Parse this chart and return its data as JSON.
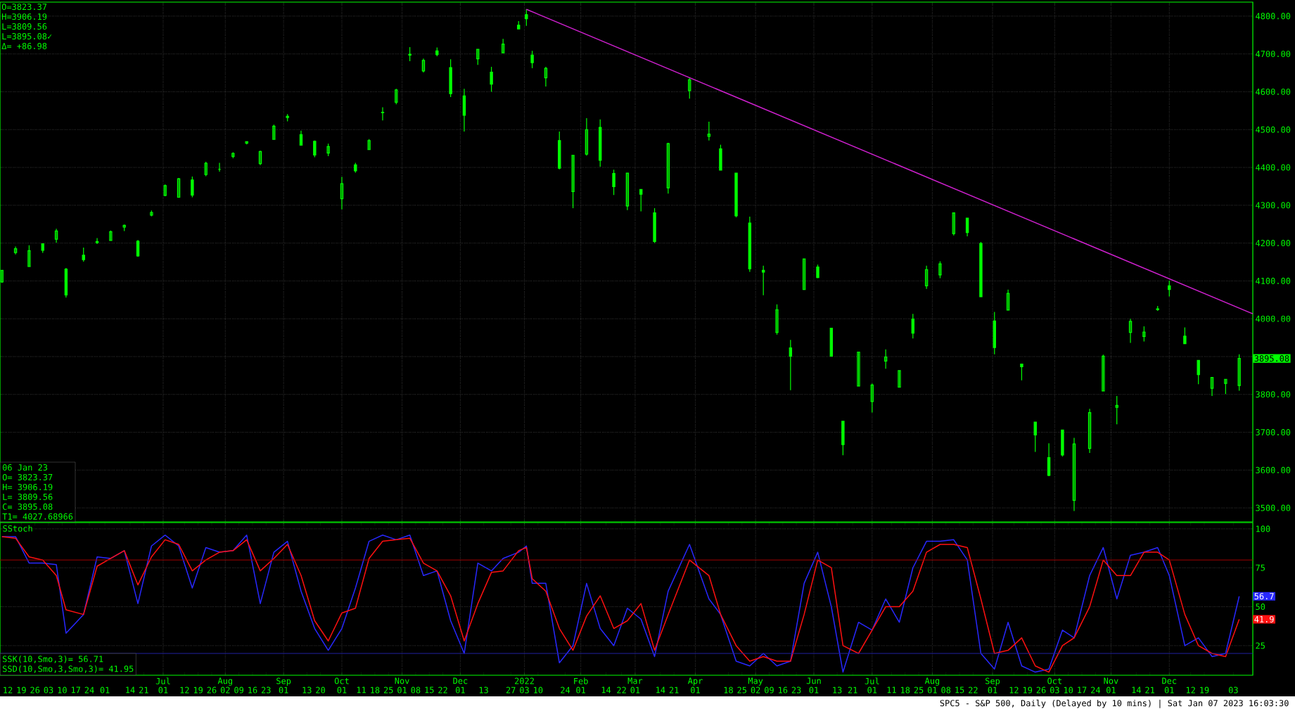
{
  "chart_data": [
    {
      "type": "candlestick",
      "color": "#00ff00",
      "grid": true,
      "tick_labels": "y",
      "xlim": [
        "2021-04-08",
        "2023-01-13"
      ],
      "ylim": [
        3463,
        4837
      ],
      "xticks": [
        {
          "value": "2021-07-01",
          "label": null
        },
        {
          "value": "2021-08-02",
          "label": null
        },
        {
          "value": "2021-09-01",
          "label": null
        },
        {
          "value": "2021-10-01",
          "label": null
        },
        {
          "value": "2021-11-01",
          "label": null
        },
        {
          "value": "2021-12-01",
          "label": null
        },
        {
          "value": "2022-01-03",
          "label": null
        },
        {
          "value": "2022-02-01",
          "label": null
        },
        {
          "value": "2022-03-01",
          "label": null
        },
        {
          "value": "2022-04-01",
          "label": null
        },
        {
          "value": "2022-05-02",
          "label": null
        },
        {
          "value": "2022-06-01",
          "label": null
        },
        {
          "value": "2022-07-01",
          "label": null
        },
        {
          "value": "2022-08-01",
          "label": null
        },
        {
          "value": "2022-09-01",
          "label": null
        },
        {
          "value": "2022-10-03",
          "label": null
        },
        {
          "value": "2022-11-01",
          "label": null
        },
        {
          "value": "2022-12-01",
          "label": null
        }
      ],
      "yticks": [
        {
          "value": 3500,
          "label": "3500.00"
        },
        {
          "value": 3600,
          "label": "3600.00"
        },
        {
          "value": 3700,
          "label": "3700.00"
        },
        {
          "value": 3800,
          "label": "3800.00"
        },
        {
          "value": 3900,
          "label": null
        },
        {
          "value": 4000,
          "label": "4000.00"
        },
        {
          "value": 4100,
          "label": "4100.00"
        },
        {
          "value": 4200,
          "label": "4200.00"
        },
        {
          "value": 4300,
          "label": "4300.00"
        },
        {
          "value": 4400,
          "label": "4400.00"
        },
        {
          "value": 4500,
          "label": "4500.00"
        },
        {
          "value": 4600,
          "label": "4600.00"
        },
        {
          "value": 4700,
          "label": "4700.00"
        },
        {
          "value": 4800,
          "label": "4800.00"
        }
      ],
      "x": [
        "2021-04-09",
        "2021-04-16",
        "2021-04-23",
        "2021-04-30",
        "2021-05-07",
        "2021-05-12",
        "2021-05-21",
        "2021-05-28",
        "2021-06-04",
        "2021-06-11",
        "2021-06-18",
        "2021-06-25",
        "2021-07-02",
        "2021-07-09",
        "2021-07-16",
        "2021-07-23",
        "2021-07-30",
        "2021-08-06",
        "2021-08-13",
        "2021-08-20",
        "2021-08-27",
        "2021-09-03",
        "2021-09-10",
        "2021-09-17",
        "2021-09-24",
        "2021-10-01",
        "2021-10-08",
        "2021-10-15",
        "2021-10-22",
        "2021-10-29",
        "2021-11-05",
        "2021-11-12",
        "2021-11-19",
        "2021-11-26",
        "2021-12-03",
        "2021-12-10",
        "2021-12-17",
        "2021-12-23",
        "2021-12-31",
        "2022-01-04",
        "2022-01-07",
        "2022-01-14",
        "2022-01-21",
        "2022-01-28",
        "2022-02-04",
        "2022-02-11",
        "2022-02-18",
        "2022-02-25",
        "2022-03-04",
        "2022-03-11",
        "2022-03-18",
        "2022-03-29",
        "2022-04-08",
        "2022-04-14",
        "2022-04-22",
        "2022-04-29",
        "2022-05-06",
        "2022-05-13",
        "2022-05-20",
        "2022-05-27",
        "2022-06-03",
        "2022-06-10",
        "2022-06-16",
        "2022-06-24",
        "2022-07-01",
        "2022-07-08",
        "2022-07-15",
        "2022-07-22",
        "2022-07-29",
        "2022-08-05",
        "2022-08-12",
        "2022-08-19",
        "2022-08-26",
        "2022-09-02",
        "2022-09-09",
        "2022-09-16",
        "2022-09-23",
        "2022-09-30",
        "2022-10-07",
        "2022-10-13",
        "2022-10-21",
        "2022-10-28",
        "2022-11-04",
        "2022-11-11",
        "2022-11-18",
        "2022-11-25",
        "2022-12-01",
        "2022-12-09",
        "2022-12-16",
        "2022-12-23",
        "2022-12-30",
        "2023-01-06"
      ],
      "ohlc": [
        [
          4097,
          4129,
          4095,
          4128
        ],
        [
          4175,
          4191,
          4170,
          4185
        ],
        [
          4138,
          4194,
          4138,
          4180
        ],
        [
          4198,
          4199,
          4174,
          4181
        ],
        [
          4210,
          4238,
          4201,
          4232
        ],
        [
          4131,
          4134,
          4056,
          4063
        ],
        [
          4168,
          4188,
          4151,
          4156
        ],
        [
          4201,
          4213,
          4198,
          4204
        ],
        [
          4207,
          4233,
          4206,
          4230
        ],
        [
          4242,
          4249,
          4232,
          4247
        ],
        [
          4205,
          4208,
          4164,
          4166
        ],
        [
          4274,
          4286,
          4271,
          4281
        ],
        [
          4326,
          4355,
          4324,
          4352
        ],
        [
          4321,
          4372,
          4321,
          4370
        ],
        [
          4367,
          4376,
          4321,
          4327
        ],
        [
          4381,
          4415,
          4377,
          4411
        ],
        [
          4395,
          4412,
          4389,
          4395
        ],
        [
          4429,
          4440,
          4424,
          4437
        ],
        [
          4464,
          4468,
          4461,
          4468
        ],
        [
          4410,
          4444,
          4406,
          4442
        ],
        [
          4474,
          4513,
          4473,
          4509
        ],
        [
          4532,
          4541,
          4522,
          4535
        ],
        [
          4487,
          4497,
          4458,
          4459
        ],
        [
          4469,
          4471,
          4427,
          4433
        ],
        [
          4438,
          4463,
          4430,
          4455
        ],
        [
          4317,
          4375,
          4289,
          4357
        ],
        [
          4407,
          4412,
          4386,
          4391
        ],
        [
          4447,
          4475,
          4447,
          4471
        ],
        [
          4546,
          4559,
          4524,
          4545
        ],
        [
          4572,
          4608,
          4567,
          4605
        ],
        [
          4699,
          4718,
          4681,
          4697
        ],
        [
          4655,
          4688,
          4651,
          4683
        ],
        [
          4708,
          4717,
          4694,
          4698
        ],
        [
          4664,
          4686,
          4586,
          4595
        ],
        [
          4589,
          4608,
          4495,
          4538
        ],
        [
          4687,
          4713,
          4671,
          4712
        ],
        [
          4652,
          4666,
          4600,
          4620
        ],
        [
          4703,
          4740,
          4703,
          4726
        ],
        [
          4776,
          4787,
          4765,
          4766
        ],
        [
          4804,
          4818.6,
          4774,
          4793
        ],
        [
          4697,
          4708,
          4662,
          4677
        ],
        [
          4637,
          4666,
          4614,
          4662
        ],
        [
          4471,
          4495,
          4395,
          4398
        ],
        [
          4336,
          4432,
          4292,
          4432
        ],
        [
          4435,
          4530,
          4431,
          4500
        ],
        [
          4506,
          4527,
          4402,
          4419
        ],
        [
          4384,
          4394,
          4327,
          4349
        ],
        [
          4298,
          4385,
          4287,
          4385
        ],
        [
          4342,
          4343,
          4284,
          4329
        ],
        [
          4280,
          4292,
          4200,
          4204
        ],
        [
          4346,
          4465,
          4331,
          4463
        ],
        [
          4603,
          4637,
          4582,
          4632
        ],
        [
          4482,
          4521,
          4471,
          4488
        ],
        [
          4449,
          4460,
          4392,
          4393
        ],
        [
          4385,
          4385,
          4268,
          4272
        ],
        [
          4253,
          4270,
          4124,
          4132
        ],
        [
          4128,
          4140,
          4062,
          4123
        ],
        [
          3964,
          4038,
          3958,
          4024
        ],
        [
          3923,
          3944,
          3811,
          3901
        ],
        [
          4077,
          4158,
          4077,
          4158
        ],
        [
          4137,
          4143,
          4107,
          4109
        ],
        [
          3975,
          3975,
          3900,
          3901
        ],
        [
          3729,
          3729,
          3639,
          3667
        ],
        [
          3822,
          3913,
          3822,
          3912
        ],
        [
          3781,
          3829,
          3752,
          3825
        ],
        [
          3888,
          3919,
          3868,
          3899
        ],
        [
          3819,
          3864,
          3818,
          3863
        ],
        [
          3999,
          4013,
          3948,
          3962
        ],
        [
          4087,
          4140,
          4079,
          4130
        ],
        [
          4116,
          4152,
          4107,
          4145
        ],
        [
          4225,
          4280,
          4220,
          4280
        ],
        [
          4266,
          4266,
          4218,
          4228
        ],
        [
          4199,
          4203,
          4057,
          4058
        ],
        [
          3994,
          4018,
          3906,
          3924
        ],
        [
          4023,
          4077,
          4023,
          4067
        ],
        [
          3880,
          3880,
          3837,
          3873
        ],
        [
          3727,
          3727,
          3648,
          3693
        ],
        [
          3633,
          3671,
          3584,
          3586
        ],
        [
          3706,
          3706,
          3636,
          3640
        ],
        [
          3520,
          3685,
          3491.6,
          3669
        ],
        [
          3657,
          3762,
          3645,
          3752
        ],
        [
          3809,
          3905,
          3809,
          3901
        ],
        [
          3766,
          3796,
          3721,
          3771
        ],
        [
          3964,
          4000,
          3936,
          3993
        ],
        [
          3953,
          3980,
          3940,
          3965
        ],
        [
          4024,
          4034,
          4021,
          4026
        ],
        [
          4087,
          4100.5,
          4059,
          4077
        ],
        [
          3954,
          3977,
          3933,
          3934
        ],
        [
          3890,
          3890,
          3827,
          3852
        ],
        [
          3816,
          3846,
          3796,
          3845
        ],
        [
          3829,
          3840,
          3801,
          3840
        ],
        [
          3823.37,
          3906.19,
          3809.56,
          3895.08
        ]
      ],
      "series": [
        {
          "type": "line",
          "color": "#d020d0",
          "x": [
            "2022-01-04",
            "2023-01-13"
          ],
          "values": [
            4818,
            4013
          ]
        }
      ],
      "annotations": [
        "O=3823.37",
        "H=3906.19",
        "L=3809.56",
        "L=3895.08✓",
        "Δ= +86.98",
        "06 Jan 23",
        "O= 3823.37",
        "H= 3906.19",
        "L= 3809.56",
        "C= 3895.08",
        "T1= 4027.68966",
        "3895.08"
      ]
    },
    {
      "type": "line",
      "title": "SStoch",
      "grid": true,
      "xlim": [
        "2021-04-08",
        "2023-01-13"
      ],
      "x2lim": [
        "2021-04-08",
        "2023-01-13"
      ],
      "ylim": [
        6,
        104
      ],
      "yticks": [
        25,
        50,
        75,
        100
      ],
      "ref_lines": [
        {
          "axis": "y",
          "value": 80,
          "color": "#a00000"
        },
        {
          "axis": "y",
          "value": 20,
          "color": "#2020a0"
        }
      ],
      "xticks": [
        {
          "value": "2021-04-12",
          "label": "12"
        },
        {
          "value": "2021-04-19",
          "label": "19"
        },
        {
          "value": "2021-04-26",
          "label": "26"
        },
        {
          "value": "2021-05-03",
          "label": "03"
        },
        {
          "value": "2021-05-10",
          "label": "10"
        },
        {
          "value": "2021-05-17",
          "label": "17"
        },
        {
          "value": "2021-05-24",
          "label": "24"
        },
        {
          "value": "2021-06-01",
          "label": "01"
        },
        {
          "value": "2021-06-14",
          "label": "14"
        },
        {
          "value": "2021-06-21",
          "label": "21"
        },
        {
          "value": "2021-07-01",
          "label": "01"
        },
        {
          "value": "2021-07-12",
          "label": "12"
        },
        {
          "value": "2021-07-19",
          "label": "19"
        },
        {
          "value": "2021-07-26",
          "label": "26"
        },
        {
          "value": "2021-08-02",
          "label": "02"
        },
        {
          "value": "2021-08-09",
          "label": "09"
        },
        {
          "value": "2021-08-16",
          "label": "16"
        },
        {
          "value": "2021-08-23",
          "label": "23"
        },
        {
          "value": "2021-09-01",
          "label": "01"
        },
        {
          "value": "2021-09-13",
          "label": "13"
        },
        {
          "value": "2021-09-20",
          "label": "20"
        },
        {
          "value": "2021-10-01",
          "label": "01"
        },
        {
          "value": "2021-10-11",
          "label": "11"
        },
        {
          "value": "2021-10-18",
          "label": "18"
        },
        {
          "value": "2021-10-25",
          "label": "25"
        },
        {
          "value": "2021-11-01",
          "label": "01"
        },
        {
          "value": "2021-11-08",
          "label": "08"
        },
        {
          "value": "2021-11-15",
          "label": "15"
        },
        {
          "value": "2021-11-22",
          "label": "22"
        },
        {
          "value": "2021-12-01",
          "label": "01"
        },
        {
          "value": "2021-12-13",
          "label": "13"
        },
        {
          "value": "2021-12-27",
          "label": "27"
        },
        {
          "value": "2022-01-03",
          "label": "03"
        },
        {
          "value": "2022-01-10",
          "label": "10"
        },
        {
          "value": "2022-01-24",
          "label": "24"
        },
        {
          "value": "2022-02-01",
          "label": "01"
        },
        {
          "value": "2022-02-14",
          "label": "14"
        },
        {
          "value": "2022-02-22",
          "label": "22"
        },
        {
          "value": "2022-03-01",
          "label": "01"
        },
        {
          "value": "2022-03-14",
          "label": "14"
        },
        {
          "value": "2022-03-21",
          "label": "21"
        },
        {
          "value": "2022-04-01",
          "label": "01"
        },
        {
          "value": "2022-04-18",
          "label": "18"
        },
        {
          "value": "2022-04-25",
          "label": "25"
        },
        {
          "value": "2022-05-02",
          "label": "02"
        },
        {
          "value": "2022-05-09",
          "label": "09"
        },
        {
          "value": "2022-05-16",
          "label": "16"
        },
        {
          "value": "2022-05-23",
          "label": "23"
        },
        {
          "value": "2022-06-01",
          "label": "01"
        },
        {
          "value": "2022-06-13",
          "label": "13"
        },
        {
          "value": "2022-06-21",
          "label": "21"
        },
        {
          "value": "2022-07-01",
          "label": "01"
        },
        {
          "value": "2022-07-11",
          "label": "11"
        },
        {
          "value": "2022-07-18",
          "label": "18"
        },
        {
          "value": "2022-07-25",
          "label": "25"
        },
        {
          "value": "2022-08-01",
          "label": "01"
        },
        {
          "value": "2022-08-08",
          "label": "08"
        },
        {
          "value": "2022-08-15",
          "label": "15"
        },
        {
          "value": "2022-08-22",
          "label": "22"
        },
        {
          "value": "2022-09-01",
          "label": "01"
        },
        {
          "value": "2022-09-12",
          "label": "12"
        },
        {
          "value": "2022-09-19",
          "label": "19"
        },
        {
          "value": "2022-09-26",
          "label": "26"
        },
        {
          "value": "2022-10-03",
          "label": "03"
        },
        {
          "value": "2022-10-10",
          "label": "10"
        },
        {
          "value": "2022-10-17",
          "label": "17"
        },
        {
          "value": "2022-10-24",
          "label": "24"
        },
        {
          "value": "2022-11-01",
          "label": "01"
        },
        {
          "value": "2022-11-14",
          "label": "14"
        },
        {
          "value": "2022-11-21",
          "label": "21"
        },
        {
          "value": "2022-12-01",
          "label": "01"
        },
        {
          "value": "2022-12-12",
          "label": "12"
        },
        {
          "value": "2022-12-19",
          "label": "19"
        },
        {
          "value": "2023-01-03",
          "label": "03"
        }
      ],
      "x2ticks": [
        {
          "value": "2021-07-01",
          "label": "Jul"
        },
        {
          "value": "2021-08-02",
          "label": "Aug"
        },
        {
          "value": "2021-09-01",
          "label": "Sep"
        },
        {
          "value": "2021-10-01",
          "label": "Oct"
        },
        {
          "value": "2021-11-01",
          "label": "Nov"
        },
        {
          "value": "2021-12-01",
          "label": "Dec"
        },
        {
          "value": "2022-01-03",
          "label": "2022"
        },
        {
          "value": "2022-02-01",
          "label": "Feb"
        },
        {
          "value": "2022-03-01",
          "label": "Mar"
        },
        {
          "value": "2022-04-01",
          "label": "Apr"
        },
        {
          "value": "2022-05-02",
          "label": "May"
        },
        {
          "value": "2022-06-01",
          "label": "Jun"
        },
        {
          "value": "2022-07-01",
          "label": "Jul"
        },
        {
          "value": "2022-08-01",
          "label": "Aug"
        },
        {
          "value": "2022-09-01",
          "label": "Sep"
        },
        {
          "value": "2022-10-03",
          "label": "Oct"
        },
        {
          "value": "2022-11-01",
          "label": "Nov"
        },
        {
          "value": "2022-12-01",
          "label": "Dec"
        }
      ],
      "x": [
        "2021-04-09",
        "2021-04-16",
        "2021-04-23",
        "2021-04-30",
        "2021-05-07",
        "2021-05-12",
        "2021-05-21",
        "2021-05-28",
        "2021-06-04",
        "2021-06-11",
        "2021-06-18",
        "2021-06-25",
        "2021-07-02",
        "2021-07-09",
        "2021-07-16",
        "2021-07-23",
        "2021-07-30",
        "2021-08-06",
        "2021-08-13",
        "2021-08-20",
        "2021-08-27",
        "2021-09-03",
        "2021-09-10",
        "2021-09-17",
        "2021-09-24",
        "2021-10-01",
        "2021-10-08",
        "2021-10-15",
        "2021-10-22",
        "2021-10-29",
        "2021-11-05",
        "2021-11-12",
        "2021-11-19",
        "2021-11-26",
        "2021-12-03",
        "2021-12-10",
        "2021-12-17",
        "2021-12-23",
        "2021-12-31",
        "2022-01-04",
        "2022-01-07",
        "2022-01-14",
        "2022-01-21",
        "2022-01-28",
        "2022-02-04",
        "2022-02-11",
        "2022-02-18",
        "2022-02-25",
        "2022-03-04",
        "2022-03-11",
        "2022-03-18",
        "2022-03-29",
        "2022-04-08",
        "2022-04-14",
        "2022-04-22",
        "2022-04-29",
        "2022-05-06",
        "2022-05-13",
        "2022-05-20",
        "2022-05-27",
        "2022-06-03",
        "2022-06-10",
        "2022-06-16",
        "2022-06-24",
        "2022-07-01",
        "2022-07-08",
        "2022-07-15",
        "2022-07-22",
        "2022-07-29",
        "2022-08-05",
        "2022-08-12",
        "2022-08-19",
        "2022-08-26",
        "2022-09-02",
        "2022-09-09",
        "2022-09-16",
        "2022-09-23",
        "2022-09-30",
        "2022-10-07",
        "2022-10-13",
        "2022-10-21",
        "2022-10-28",
        "2022-11-04",
        "2022-11-11",
        "2022-11-18",
        "2022-11-25",
        "2022-12-01",
        "2022-12-09",
        "2022-12-16",
        "2022-12-23",
        "2022-12-30",
        "2023-01-06"
      ],
      "series": [
        {
          "color": "#2828ff",
          "values": [
            95,
            95,
            78,
            78,
            77,
            33,
            45,
            82,
            81,
            86,
            52,
            89,
            96,
            89,
            62,
            88,
            85,
            86,
            96,
            52,
            85,
            92,
            60,
            36,
            22,
            36,
            62,
            92,
            96,
            93,
            96,
            70,
            73,
            41,
            20,
            78,
            73,
            81,
            85,
            89,
            65,
            65,
            14,
            25,
            65,
            36,
            25,
            49,
            42,
            18,
            60,
            90,
            55,
            45,
            15,
            12,
            20,
            12,
            15,
            65,
            85,
            50,
            8,
            40,
            35,
            55,
            40,
            75,
            92,
            92,
            93,
            80,
            20,
            10,
            40,
            12,
            8,
            10,
            35,
            30,
            70,
            88,
            55,
            83,
            85,
            88,
            70,
            25,
            30,
            18,
            20,
            56.71
          ]
        },
        {
          "color": "#ff1010",
          "values": [
            95,
            94,
            82,
            80,
            70,
            48,
            45,
            76,
            81,
            86,
            64,
            82,
            93,
            90,
            73,
            80,
            85,
            86,
            93,
            73,
            81,
            90,
            70,
            41,
            28,
            46,
            49,
            81,
            92,
            93,
            94,
            78,
            73,
            57,
            28,
            52,
            72,
            73,
            86,
            88,
            68,
            60,
            36,
            22,
            44,
            57,
            36,
            41,
            52,
            22,
            45,
            80,
            70,
            45,
            25,
            15,
            18,
            15,
            15,
            45,
            80,
            75,
            25,
            20,
            35,
            50,
            50,
            60,
            85,
            90,
            90,
            88,
            55,
            20,
            22,
            30,
            12,
            8,
            25,
            30,
            50,
            80,
            70,
            70,
            85,
            85,
            80,
            45,
            25,
            20,
            18,
            41.95
          ]
        }
      ],
      "annotations": [
        "SSK(10,Smo,3)= 56.71",
        "SSD(10,Smo,3,Smo,3)= 41.95",
        "SPC5 - S&P 500, Daily (Delayed by 10 mins) | Sat Jan 07 2023 16:03:30",
        "56.7",
        "41.9"
      ]
    }
  ]
}
